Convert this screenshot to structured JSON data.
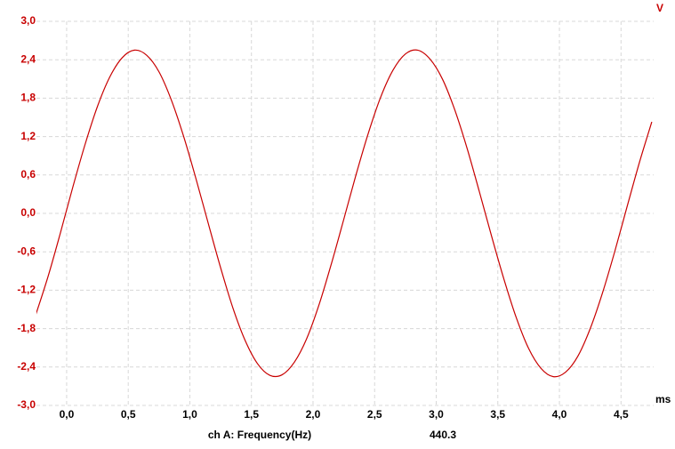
{
  "chart_data": {
    "type": "line",
    "y_unit": "V",
    "x_unit": "ms",
    "x": [
      -0.25,
      -0.15,
      -0.05,
      0.05,
      0.15,
      0.25,
      0.35,
      0.45,
      0.55,
      0.65,
      0.75,
      0.85,
      0.95,
      1.05,
      1.15,
      1.25,
      1.35,
      1.45,
      1.55,
      1.65,
      1.75,
      1.85,
      1.95,
      2.05,
      2.15,
      2.25,
      2.35,
      2.45,
      2.55,
      2.65,
      2.75,
      2.85,
      2.95,
      3.05,
      3.15,
      3.25,
      3.35,
      3.45,
      3.55,
      3.65,
      3.75,
      3.85,
      3.95,
      4.05,
      4.15,
      4.25,
      4.35,
      4.45,
      4.55,
      4.65,
      4.75
    ],
    "series": [
      {
        "name": "ch A",
        "color": "#c80000",
        "values": [
          -1.58,
          -0.98,
          -0.3,
          0.41,
          1.08,
          1.67,
          2.13,
          2.43,
          2.55,
          2.47,
          2.21,
          1.77,
          1.2,
          0.54,
          -0.16,
          -0.85,
          -1.48,
          -1.99,
          -2.35,
          -2.53,
          -2.52,
          -2.32,
          -1.95,
          -1.42,
          -0.78,
          -0.09,
          0.61,
          1.26,
          1.82,
          2.24,
          2.49,
          2.55,
          2.41,
          2.1,
          1.62,
          1.02,
          0.34,
          -0.36,
          -1.03,
          -1.63,
          -2.11,
          -2.42,
          -2.55,
          -2.48,
          -2.23,
          -1.8,
          -1.24,
          -0.59,
          0.11,
          0.8,
          1.43
        ]
      }
    ],
    "xlim": [
      -0.245,
      4.765
    ],
    "ylim": [
      -3,
      3
    ],
    "xticks": [
      {
        "value": 0,
        "label": "0,0"
      },
      {
        "value": 0.5,
        "label": "0,5"
      },
      {
        "value": 1,
        "label": "1,0"
      },
      {
        "value": 1.5,
        "label": "1,5"
      },
      {
        "value": 2,
        "label": "2,0"
      },
      {
        "value": 2.5,
        "label": "2,5"
      },
      {
        "value": 3,
        "label": "3,0"
      },
      {
        "value": 3.5,
        "label": "3,5"
      },
      {
        "value": 4,
        "label": "4,0"
      },
      {
        "value": 4.5,
        "label": "4,5"
      }
    ],
    "yticks": [
      {
        "value": 3,
        "label": "3,0"
      },
      {
        "value": 2.4,
        "label": "2,4"
      },
      {
        "value": 1.8,
        "label": "1,8"
      },
      {
        "value": 1.2,
        "label": "1,2"
      },
      {
        "value": 0.6,
        "label": "0,6"
      },
      {
        "value": 0,
        "label": "0,0"
      },
      {
        "value": -0.6,
        "label": "-0,6"
      },
      {
        "value": -1.2,
        "label": "-1,2"
      },
      {
        "value": -1.8,
        "label": "-1,8"
      },
      {
        "value": -2.4,
        "label": "-2,4"
      },
      {
        "value": -3,
        "label": "-3,0"
      }
    ],
    "grid": true,
    "measurement": {
      "label": "ch A: Frequency(Hz)",
      "value": 440.3
    }
  }
}
